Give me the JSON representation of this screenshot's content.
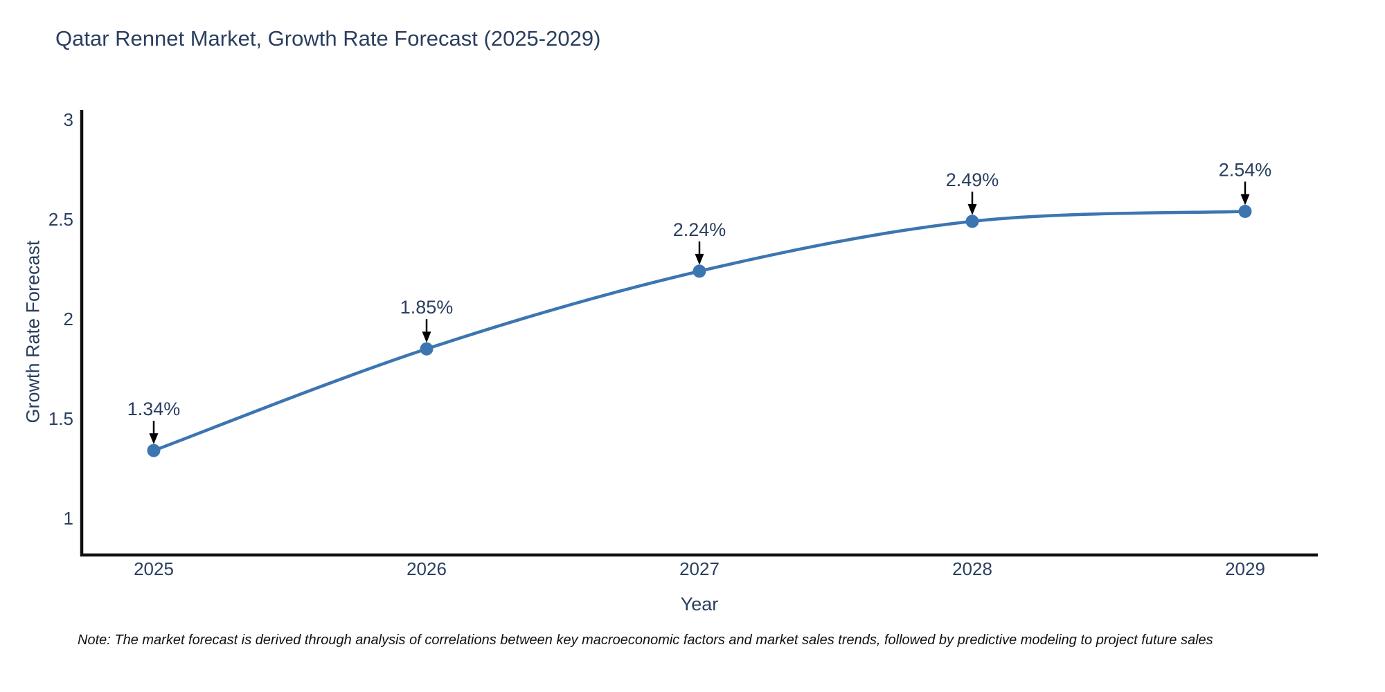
{
  "note": {
    "text": "Note: The market forecast is derived through analysis of correlations between key macroeconomic factors and market sales trends, followed by predictive modeling to project future sales"
  },
  "colors": {
    "line": "#3c76b1",
    "marker": "#3c76b1",
    "axis": "#0f0f0f",
    "text": "#2a3f5f",
    "arrow": "#000000",
    "note_text": "#111111",
    "background": "#ffffff"
  },
  "chart_data": {
    "type": "line",
    "title": "Qatar Rennet Market, Growth Rate Forecast (2025-2029)",
    "xlabel": "Year",
    "ylabel": "Growth Rate Forecast",
    "categories": [
      "2025",
      "2026",
      "2027",
      "2028",
      "2029"
    ],
    "x": [
      2025,
      2026,
      2027,
      2028,
      2029
    ],
    "values": [
      1.34,
      1.85,
      2.24,
      2.49,
      2.54
    ],
    "point_labels": [
      "1.34%",
      "1.85%",
      "2.24%",
      "2.49%",
      "2.54%"
    ],
    "yticks": [
      1,
      1.5,
      2,
      2.5,
      3
    ],
    "ytick_labels": [
      "1",
      "1.5",
      "2",
      "2.5",
      "3"
    ],
    "ylim": [
      0.815,
      3.05
    ],
    "xlim": [
      2024.74,
      2029.27
    ],
    "grid": false,
    "legend_position": "none",
    "line_shape": "spline",
    "marker": "circle",
    "annotations": "value labels with down arrows above each point"
  }
}
